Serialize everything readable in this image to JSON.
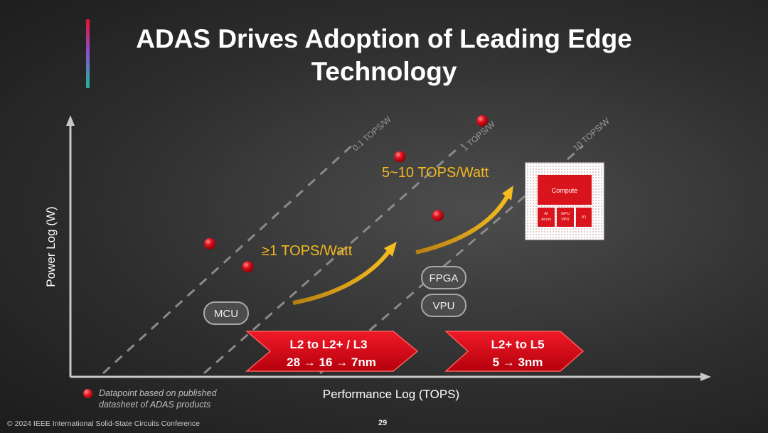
{
  "title": {
    "line1": "ADAS Drives Adoption of Leading Edge",
    "line2": "Technology"
  },
  "chart_data": {
    "type": "scatter",
    "xlabel": "Performance Log (TOPS)",
    "ylabel": "Power Log (W)",
    "xscale": "log",
    "yscale": "log",
    "grid": false,
    "efficiency_lines": [
      "0.1 TOPS/W",
      "1 TOPS/W",
      "10 TOPS/W"
    ],
    "points": [
      {
        "x": 0.22,
        "y": 0.52
      },
      {
        "x": 0.28,
        "y": 0.43
      },
      {
        "x": 0.52,
        "y": 0.86
      },
      {
        "x": 0.65,
        "y": 1.0
      },
      {
        "x": 0.58,
        "y": 0.63
      }
    ],
    "device_labels": [
      "MCU",
      "FPGA",
      "VPU"
    ],
    "annotations": {
      "arrow1": "≥1 TOPS/Watt",
      "arrow2": "5~10 TOPS/Watt"
    },
    "stages": [
      {
        "line1": "L2 to L2+ / L3",
        "line2": "28 → 16 → 7nm"
      },
      {
        "line1": "L2+ to L5",
        "line2": "5 → 3nm"
      }
    ],
    "chip": {
      "compute": "Compute",
      "ai": [
        "AI",
        "Accel"
      ],
      "gpu": [
        "GPU",
        "VPU"
      ],
      "io": "IO"
    }
  },
  "legend": {
    "text": "Datapoint based on published datasheet of ADAS products"
  },
  "footer": {
    "copyright": "© 2024 IEEE International Solid-State Circuits Conference",
    "page": "29"
  },
  "colors": {
    "accent_red": "#e8111f",
    "arrow_gold": "#f3b41d",
    "label_gold": "#f2b81c",
    "axis": "#c8c8c8"
  }
}
